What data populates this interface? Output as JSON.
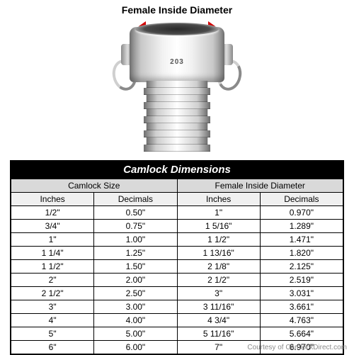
{
  "diagram": {
    "top_label": "Female Inside Diameter",
    "measure_color": "#d10000",
    "body_stamp": "203"
  },
  "table": {
    "title": "Camlock Dimensions",
    "group_headers": [
      "Camlock Size",
      "Female Inside Diameter"
    ],
    "sub_headers": [
      "Inches",
      "Decimals",
      "Inches",
      "Decimals"
    ],
    "rows": [
      [
        "1/2\"",
        "0.50\"",
        "1\"",
        "0.970\""
      ],
      [
        "3/4\"",
        "0.75\"",
        "1 5/16\"",
        "1.289\""
      ],
      [
        "1\"",
        "1.00\"",
        "1 1/2\"",
        "1.471\""
      ],
      [
        "1 1/4\"",
        "1.25\"",
        "1 13/16\"",
        "1.820\""
      ],
      [
        "1 1/2\"",
        "1.50\"",
        "2 1/8\"",
        "2.125\""
      ],
      [
        "2\"",
        "2.00\"",
        "2 1/2\"",
        "2.519\""
      ],
      [
        "2 1/2\"",
        "2.50\"",
        "3\"",
        "3.031\""
      ],
      [
        "3\"",
        "3.00\"",
        "3 11/16\"",
        "3.661\""
      ],
      [
        "4\"",
        "4.00\"",
        "4 3/4\"",
        "4.763\""
      ],
      [
        "5\"",
        "5.00\"",
        "5 11/16\"",
        "5.664\""
      ],
      [
        "6\"",
        "6.00\"",
        "7\"",
        "6.970\""
      ]
    ],
    "header_bg": "#d9d9d9",
    "subheader_bg": "#f0f0f0",
    "title_bg": "#000000",
    "title_color": "#ffffff",
    "border_color": "#000000",
    "font_size": 12
  },
  "credit": "Courtesy of CamlockDirect.com"
}
